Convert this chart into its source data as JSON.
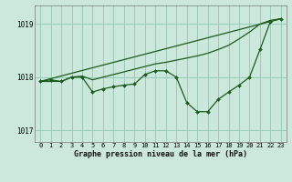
{
  "title": "Graphe pression niveau de la mer (hPa)",
  "bg_color": "#cce8dc",
  "line_color": "#1a5c1a",
  "grid_color": "#99ccb8",
  "xlim": [
    -0.5,
    23.5
  ],
  "ylim": [
    1016.78,
    1019.35
  ],
  "yticks": [
    1017,
    1018,
    1019
  ],
  "xticks": [
    0,
    1,
    2,
    3,
    4,
    5,
    6,
    7,
    8,
    9,
    10,
    11,
    12,
    13,
    14,
    15,
    16,
    17,
    18,
    19,
    20,
    21,
    22,
    23
  ],
  "series1_x": [
    0,
    1,
    2,
    3,
    4,
    5,
    6,
    7,
    8,
    9,
    10,
    11,
    12,
    13,
    14,
    15,
    16,
    17,
    18,
    19,
    20,
    21,
    22,
    23
  ],
  "series1_y": [
    1017.92,
    1017.95,
    1017.92,
    1018.0,
    1018.0,
    1017.72,
    1017.78,
    1017.82,
    1017.85,
    1017.87,
    1018.05,
    1018.12,
    1018.12,
    1018.0,
    1017.52,
    1017.35,
    1017.35,
    1017.58,
    1017.72,
    1017.85,
    1018.0,
    1018.52,
    1019.05,
    1019.1
  ],
  "series2_x": [
    0,
    1,
    2,
    3,
    4,
    5,
    6,
    7,
    8,
    9,
    10,
    11,
    12,
    13,
    14,
    15,
    16,
    17,
    18,
    19,
    20,
    21,
    22,
    23
  ],
  "series2_y": [
    1017.92,
    1017.92,
    1017.92,
    1018.0,
    1018.02,
    1017.95,
    1018.0,
    1018.05,
    1018.1,
    1018.15,
    1018.2,
    1018.25,
    1018.28,
    1018.32,
    1018.36,
    1018.4,
    1018.45,
    1018.52,
    1018.6,
    1018.72,
    1018.85,
    1019.0,
    1019.07,
    1019.1
  ],
  "series3_x": [
    0,
    23
  ],
  "series3_y": [
    1017.92,
    1019.1
  ]
}
